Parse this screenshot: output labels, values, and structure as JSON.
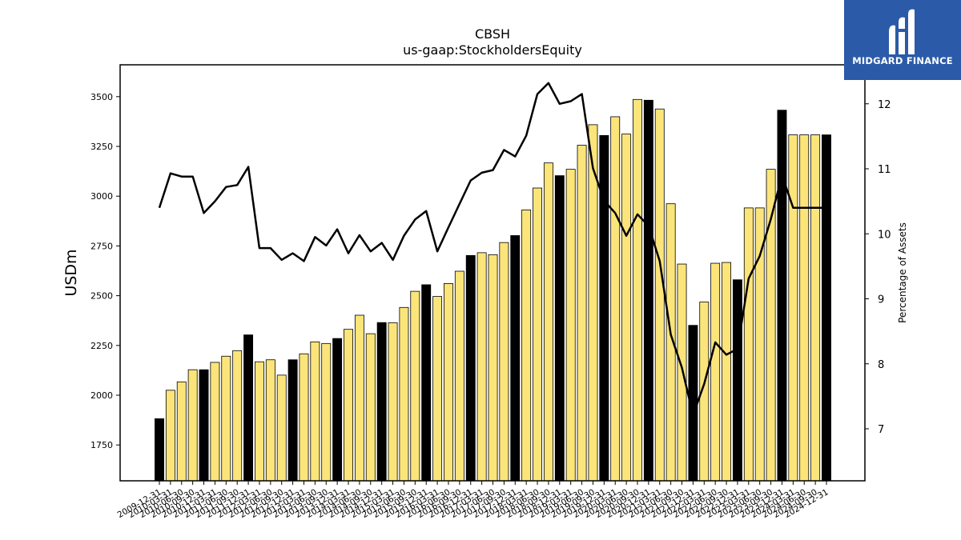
{
  "logo": {
    "text": "MIDGARD FINANCE"
  },
  "chart_data": {
    "type": "bar",
    "title": "CBSH",
    "subtitle": "us-gaap:StockholdersEquity",
    "ylabel": "USDm",
    "y2label": "Percentage of Assets",
    "ylim": [
      1570,
      3660
    ],
    "y2lim": [
      6.2,
      12.6
    ],
    "yticks": [
      1750,
      2000,
      2250,
      2500,
      2750,
      3000,
      3250,
      3500
    ],
    "y2ticks": [
      7,
      8,
      9,
      10,
      11,
      12
    ],
    "colors": {
      "q4_bar": "#000000",
      "quarter_bar": "#fbe57a",
      "line": "#000000"
    },
    "categories": [
      "2009-12-31",
      "2010-03-31",
      "2010-06-30",
      "2010-09-30",
      "2010-12-31",
      "2011-03-31",
      "2011-06-30",
      "2011-09-30",
      "2011-12-31",
      "2012-03-31",
      "2012-06-30",
      "2012-09-30",
      "2012-12-31",
      "2013-03-31",
      "2013-06-30",
      "2013-09-30",
      "2013-12-31",
      "2014-03-31",
      "2014-06-30",
      "2014-09-30",
      "2014-12-31",
      "2015-03-31",
      "2015-06-30",
      "2015-09-30",
      "2015-12-31",
      "2016-03-31",
      "2016-06-30",
      "2016-09-30",
      "2016-12-31",
      "2017-03-31",
      "2017-06-30",
      "2017-09-30",
      "2017-12-31",
      "2018-03-31",
      "2018-06-30",
      "2018-09-30",
      "2018-12-31",
      "2019-03-31",
      "2019-06-30",
      "2019-09-30",
      "2019-12-31",
      "2020-03-31",
      "2020-06-30",
      "2020-09-30",
      "2020-12-31",
      "2021-03-31",
      "2021-06-30",
      "2021-09-30",
      "2021-12-31",
      "2022-03-31",
      "2022-06-30",
      "2022-09-30",
      "2022-12-31",
      "2023-03-31",
      "2023-06-30",
      "2023-09-30",
      "2023-12-31",
      "2024-03-31",
      "2024-06-30",
      "2024-09-30",
      "2024-12-31"
    ],
    "xticklabels": [
      "2009-12-31",
      "2010-03-31",
      "2010-06-30",
      "2010-09-30",
      "2010-12-31",
      "2011-03-31",
      "2011-06-30",
      "2011-09-30",
      "2011-12-31",
      "2012-03-31",
      "2012-06-30",
      "2012-09-30",
      "2012-12-31",
      "2013-03-31",
      "2013-06-30",
      "2013-09-30",
      "2013-12-31",
      "2014-03-31",
      "2014-06-30",
      "2014-09-30",
      "2014-12-31",
      "2015-03-31",
      "2015-06-30",
      "2015-09-30",
      "2015-12-31",
      "2016-03-31",
      "2016-06-30",
      "2016-09-30",
      "2016-12-31",
      "2017-03-31",
      "2017-06-30",
      "2017-09-30",
      "2017-12-31",
      "2018-03-31",
      "2018-06-30",
      "2018-09-30",
      "2018-12-31",
      "2019-03-31",
      "2019-06-30",
      "2019-09-30",
      "2019-12-31",
      "2020-03-31",
      "2020-06-30",
      "2020-09-30",
      "2020-12-31",
      "2021-03-31",
      "2021-06-30",
      "2021-09-30",
      "2021-12-31",
      "2022-03-31",
      "2022-06-30",
      "2022-09-30",
      "2022-12-31",
      "2023-03-31",
      "2023-06-30",
      "2023-09-30",
      "2023-12-31",
      "2024-03-31",
      "2024-06-30",
      "2024-09-30",
      "2024-12-31"
    ],
    "series": [
      {
        "kind": "bar",
        "axis": "left",
        "values": [
          1882,
          2025,
          2067,
          2128,
          2128,
          2165,
          2196,
          2224,
          2303,
          2168,
          2178,
          2101,
          2178,
          2208,
          2268,
          2260,
          2285,
          2331,
          2402,
          2309,
          2365,
          2364,
          2441,
          2522,
          2555,
          2496,
          2561,
          2623,
          2702,
          2716,
          2706,
          2767,
          2802,
          2931,
          3041,
          3167,
          3103,
          3135,
          3256,
          3359,
          3305,
          3399,
          3312,
          3486,
          3482,
          3438,
          2962,
          2659,
          2351,
          2468,
          2663,
          2667,
          2580,
          2941,
          2941,
          3135,
          3432,
          3308,
          3308,
          3308,
          3308
        ]
      },
      {
        "kind": "line",
        "axis": "right",
        "values": [
          10.4,
          10.93,
          10.88,
          10.88,
          10.32,
          10.5,
          10.72,
          10.75,
          11.03,
          9.78,
          9.78,
          9.6,
          9.7,
          9.58,
          9.95,
          9.82,
          10.07,
          9.7,
          9.98,
          9.73,
          9.86,
          9.6,
          9.97,
          10.22,
          10.35,
          9.73,
          10.1,
          10.46,
          10.82,
          10.94,
          10.98,
          11.29,
          11.19,
          11.51,
          12.15,
          12.32,
          12.0,
          12.04,
          12.15,
          11.01,
          10.51,
          10.32,
          9.97,
          10.3,
          10.12,
          9.58,
          8.45,
          7.94,
          7.21,
          7.69,
          8.33,
          8.14,
          8.23,
          9.31,
          9.66,
          10.23,
          10.9,
          10.4,
          10.4,
          10.4,
          10.4
        ]
      }
    ]
  }
}
